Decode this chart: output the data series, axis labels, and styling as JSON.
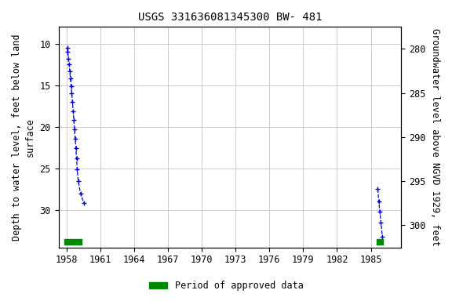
{
  "title": "USGS 331636081345300 BW- 481",
  "ylabel_left": "Depth to water level, feet below land\nsurface",
  "ylabel_right": "Groundwater level above NGVD 1929, feet",
  "ylim_left": [
    8.0,
    34.5
  ],
  "ylim_right": [
    277.5,
    302.5
  ],
  "yticks_left": [
    10,
    15,
    20,
    25,
    30
  ],
  "yticks_right": [
    280,
    285,
    290,
    295,
    300
  ],
  "xlim": [
    1957.3,
    1987.7
  ],
  "xticks": [
    1958,
    1961,
    1964,
    1967,
    1970,
    1973,
    1976,
    1979,
    1982,
    1985
  ],
  "cluster1_x": [
    1958.08,
    1958.12,
    1958.18,
    1958.24,
    1958.3,
    1958.36,
    1958.42,
    1958.48,
    1958.54,
    1958.6,
    1958.66,
    1958.72,
    1958.78,
    1958.84,
    1958.9,
    1958.96,
    1959.05,
    1959.25,
    1959.55
  ],
  "cluster1_y": [
    10.5,
    11.0,
    11.8,
    12.5,
    13.3,
    14.2,
    15.1,
    16.0,
    17.0,
    18.1,
    19.2,
    20.3,
    21.4,
    22.6,
    23.8,
    25.1,
    26.5,
    28.0,
    29.2
  ],
  "cluster2_x": [
    1985.62,
    1985.7,
    1985.8,
    1985.9,
    1986.02
  ],
  "cluster2_y": [
    27.5,
    29.0,
    30.2,
    31.5,
    33.2
  ],
  "green_bar1_xstart": 1957.85,
  "green_bar1_xend": 1959.35,
  "green_bar2_xstart": 1985.5,
  "green_bar2_xend": 1986.1,
  "green_bar_y": 33.8,
  "green_bar_height": 0.65,
  "line_color": "#0000cc",
  "green_color": "#008800",
  "bg_color": "#ffffff",
  "grid_color": "#cccccc",
  "title_fontsize": 10,
  "tick_fontsize": 8.5,
  "label_fontsize": 8.5
}
